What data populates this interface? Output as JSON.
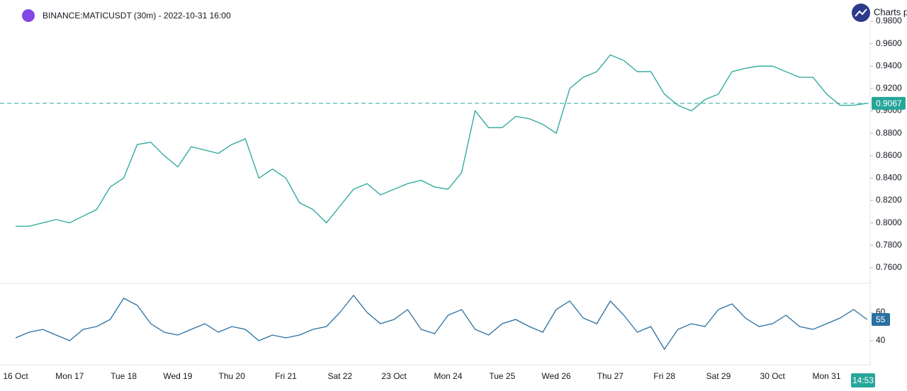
{
  "header": {
    "title": "BINANCE:MATICUSDT (30m) - 2022-10-31 16:00",
    "brand": "Charts p",
    "time": "14:53"
  },
  "chart_data": [
    {
      "type": "line",
      "color": "#26a69a",
      "categories": [
        "16 Oct",
        null,
        null,
        null,
        "Mon 17",
        null,
        null,
        null,
        "Tue 18",
        null,
        null,
        null,
        "Wed 19",
        null,
        null,
        null,
        "Thu 20",
        null,
        null,
        null,
        "Fri 21",
        null,
        null,
        null,
        "Sat 22",
        null,
        null,
        null,
        "23 Oct",
        null,
        null,
        null,
        "Mon 24",
        null,
        null,
        null,
        "Tue 25",
        null,
        null,
        null,
        "Wed 26",
        null,
        null,
        null,
        "Thu 27",
        null,
        null,
        null,
        "Fri 28",
        null,
        null,
        null,
        "Sat 29",
        null,
        null,
        null,
        "30 Oct",
        null,
        null,
        null,
        "Mon 31",
        null,
        null,
        null
      ],
      "values": [
        0.797,
        0.797,
        0.8,
        0.803,
        0.8,
        0.806,
        0.812,
        0.832,
        0.84,
        0.87,
        0.872,
        0.86,
        0.85,
        0.868,
        0.865,
        0.862,
        0.87,
        0.875,
        0.84,
        0.848,
        0.84,
        0.818,
        0.812,
        0.8,
        0.815,
        0.83,
        0.835,
        0.825,
        0.83,
        0.835,
        0.838,
        0.832,
        0.83,
        0.845,
        0.9,
        0.885,
        0.885,
        0.895,
        0.893,
        0.888,
        0.88,
        0.92,
        0.93,
        0.935,
        0.95,
        0.945,
        0.935,
        0.935,
        0.915,
        0.905,
        0.9,
        0.91,
        0.915,
        0.935,
        0.938,
        0.94,
        0.94,
        0.935,
        0.93,
        0.93,
        0.915,
        0.905,
        0.905,
        0.9067
      ],
      "ylim": [
        0.746,
        0.999
      ],
      "yticks": [
        {
          "value": 0.76,
          "label": "0.7600"
        },
        {
          "value": 0.78,
          "label": "0.7800"
        },
        {
          "value": 0.8,
          "label": "0.8000"
        },
        {
          "value": 0.82,
          "label": "0.8200"
        },
        {
          "value": 0.84,
          "label": "0.8400"
        },
        {
          "value": 0.86,
          "label": "0.8600"
        },
        {
          "value": 0.88,
          "label": "0.8800"
        },
        {
          "value": 0.9,
          "label": "0.9000"
        },
        {
          "value": 0.92,
          "label": "0.9200"
        },
        {
          "value": 0.94,
          "label": "0.9400"
        },
        {
          "value": 0.96,
          "label": "0.9600"
        },
        {
          "value": 0.98,
          "label": "0.9800"
        }
      ],
      "price_line": {
        "value": 0.9067,
        "label": "0.9067"
      }
    },
    {
      "type": "line",
      "color": "#2a6fa0",
      "values": [
        42,
        46,
        48,
        44,
        40,
        48,
        50,
        55,
        70,
        65,
        52,
        46,
        44,
        48,
        52,
        46,
        50,
        48,
        40,
        44,
        42,
        44,
        48,
        50,
        60,
        72,
        60,
        52,
        55,
        62,
        48,
        45,
        58,
        62,
        48,
        44,
        52,
        55,
        50,
        46,
        62,
        68,
        56,
        52,
        68,
        58,
        46,
        50,
        34,
        48,
        52,
        50,
        62,
        66,
        56,
        50,
        52,
        58,
        50,
        48,
        52,
        56,
        62,
        55
      ],
      "ylim": [
        23,
        79.5
      ],
      "yticks": [
        40,
        60
      ],
      "price_line": 55
    }
  ]
}
